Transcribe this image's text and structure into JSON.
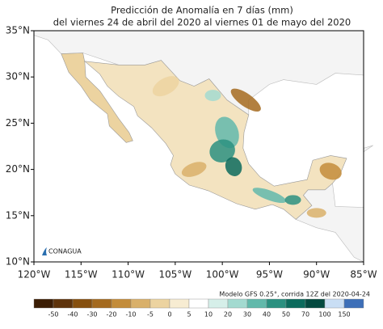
{
  "title": "Predicción de Anomalía en 7 días (mm)",
  "subtitle": "del viernes 24 de abril del 2020 al viernes  01 de mayo del 2020",
  "lat_ticks": [
    {
      "value": 35,
      "label": "35°N"
    },
    {
      "value": 30,
      "label": "30°N"
    },
    {
      "value": 25,
      "label": "25°N"
    },
    {
      "value": 20,
      "label": "20°N"
    },
    {
      "value": 15,
      "label": "15°N"
    },
    {
      "value": 10,
      "label": "10°N"
    }
  ],
  "lon_ticks": [
    {
      "value": -120,
      "label": "120°W"
    },
    {
      "value": -115,
      "label": "115°W"
    },
    {
      "value": -110,
      "label": "110°W"
    },
    {
      "value": -105,
      "label": "105°W"
    },
    {
      "value": -100,
      "label": "100°W"
    },
    {
      "value": -95,
      "label": "95°W"
    },
    {
      "value": -90,
      "label": "90°W"
    },
    {
      "value": -85,
      "label": "85°W"
    }
  ],
  "lon_range": [
    -120,
    -85
  ],
  "lat_range": [
    10,
    35
  ],
  "note": "Modelo GFS 0.25°, corrida 12Z del 2020-04-24",
  "logo": "CONAGUA",
  "colorbar": {
    "labels": [
      -50,
      -40,
      -30,
      -20,
      -10,
      -5,
      0,
      5,
      10,
      20,
      30,
      40,
      50,
      70,
      100,
      150
    ],
    "colors": [
      "#3b1d04",
      "#5e330b",
      "#86500f",
      "#a46a1f",
      "#c38c3a",
      "#d9b06a",
      "#ecd3a0",
      "#f7ecd2",
      "#ffffff",
      "#d6efe9",
      "#a3dad0",
      "#62b9ab",
      "#2b9080",
      "#0c6b5d",
      "#044a40",
      "#c9def4",
      "#3d6fb8"
    ]
  }
}
